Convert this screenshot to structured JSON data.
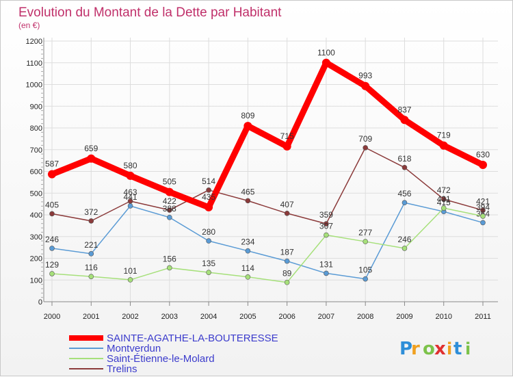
{
  "chart_data": {
    "type": "line",
    "title": "Evolution du Montant de la Dette par Habitant",
    "subtitle": "(en €)",
    "x": [
      "2000",
      "2001",
      "2002",
      "2003",
      "2004",
      "2005",
      "2006",
      "2007",
      "2008",
      "2009",
      "2010",
      "2011"
    ],
    "ylim": [
      0,
      1200
    ],
    "yticks": [
      0,
      100,
      200,
      300,
      400,
      500,
      600,
      700,
      800,
      900,
      1000,
      1100,
      1200
    ],
    "grid": true,
    "legend_position": "bottom-left",
    "series": [
      {
        "name": "SAINTE-AGATHE-LA-BOUTERESSE",
        "color": "#ff0000",
        "values": [
          587,
          659,
          580,
          505,
          435,
          809,
          715,
          1100,
          993,
          837,
          719,
          630
        ]
      },
      {
        "name": "Montverdun",
        "color": "#5a9bd5",
        "values": [
          246,
          221,
          441,
          388,
          280,
          234,
          187,
          131,
          105,
          456,
          415,
          364
        ]
      },
      {
        "name": "Saint-Étienne-le-Molard",
        "color": "#a6e07a",
        "values": [
          129,
          116,
          101,
          156,
          135,
          114,
          89,
          307,
          277,
          246,
          431,
          394
        ]
      },
      {
        "name": "Trelins",
        "color": "#8b3a3a",
        "values": [
          405,
          372,
          463,
          422,
          514,
          465,
          407,
          359,
          709,
          618,
          472,
          421
        ]
      }
    ]
  },
  "brand": {
    "letters": [
      "P",
      "r",
      "o",
      "x",
      "i",
      "t",
      "i"
    ],
    "colors": [
      "#2e8ed8",
      "#f0a020",
      "#7cc24a",
      "#e03030",
      "#f0a020",
      "#2e8ed8",
      "#7cc24a"
    ]
  }
}
